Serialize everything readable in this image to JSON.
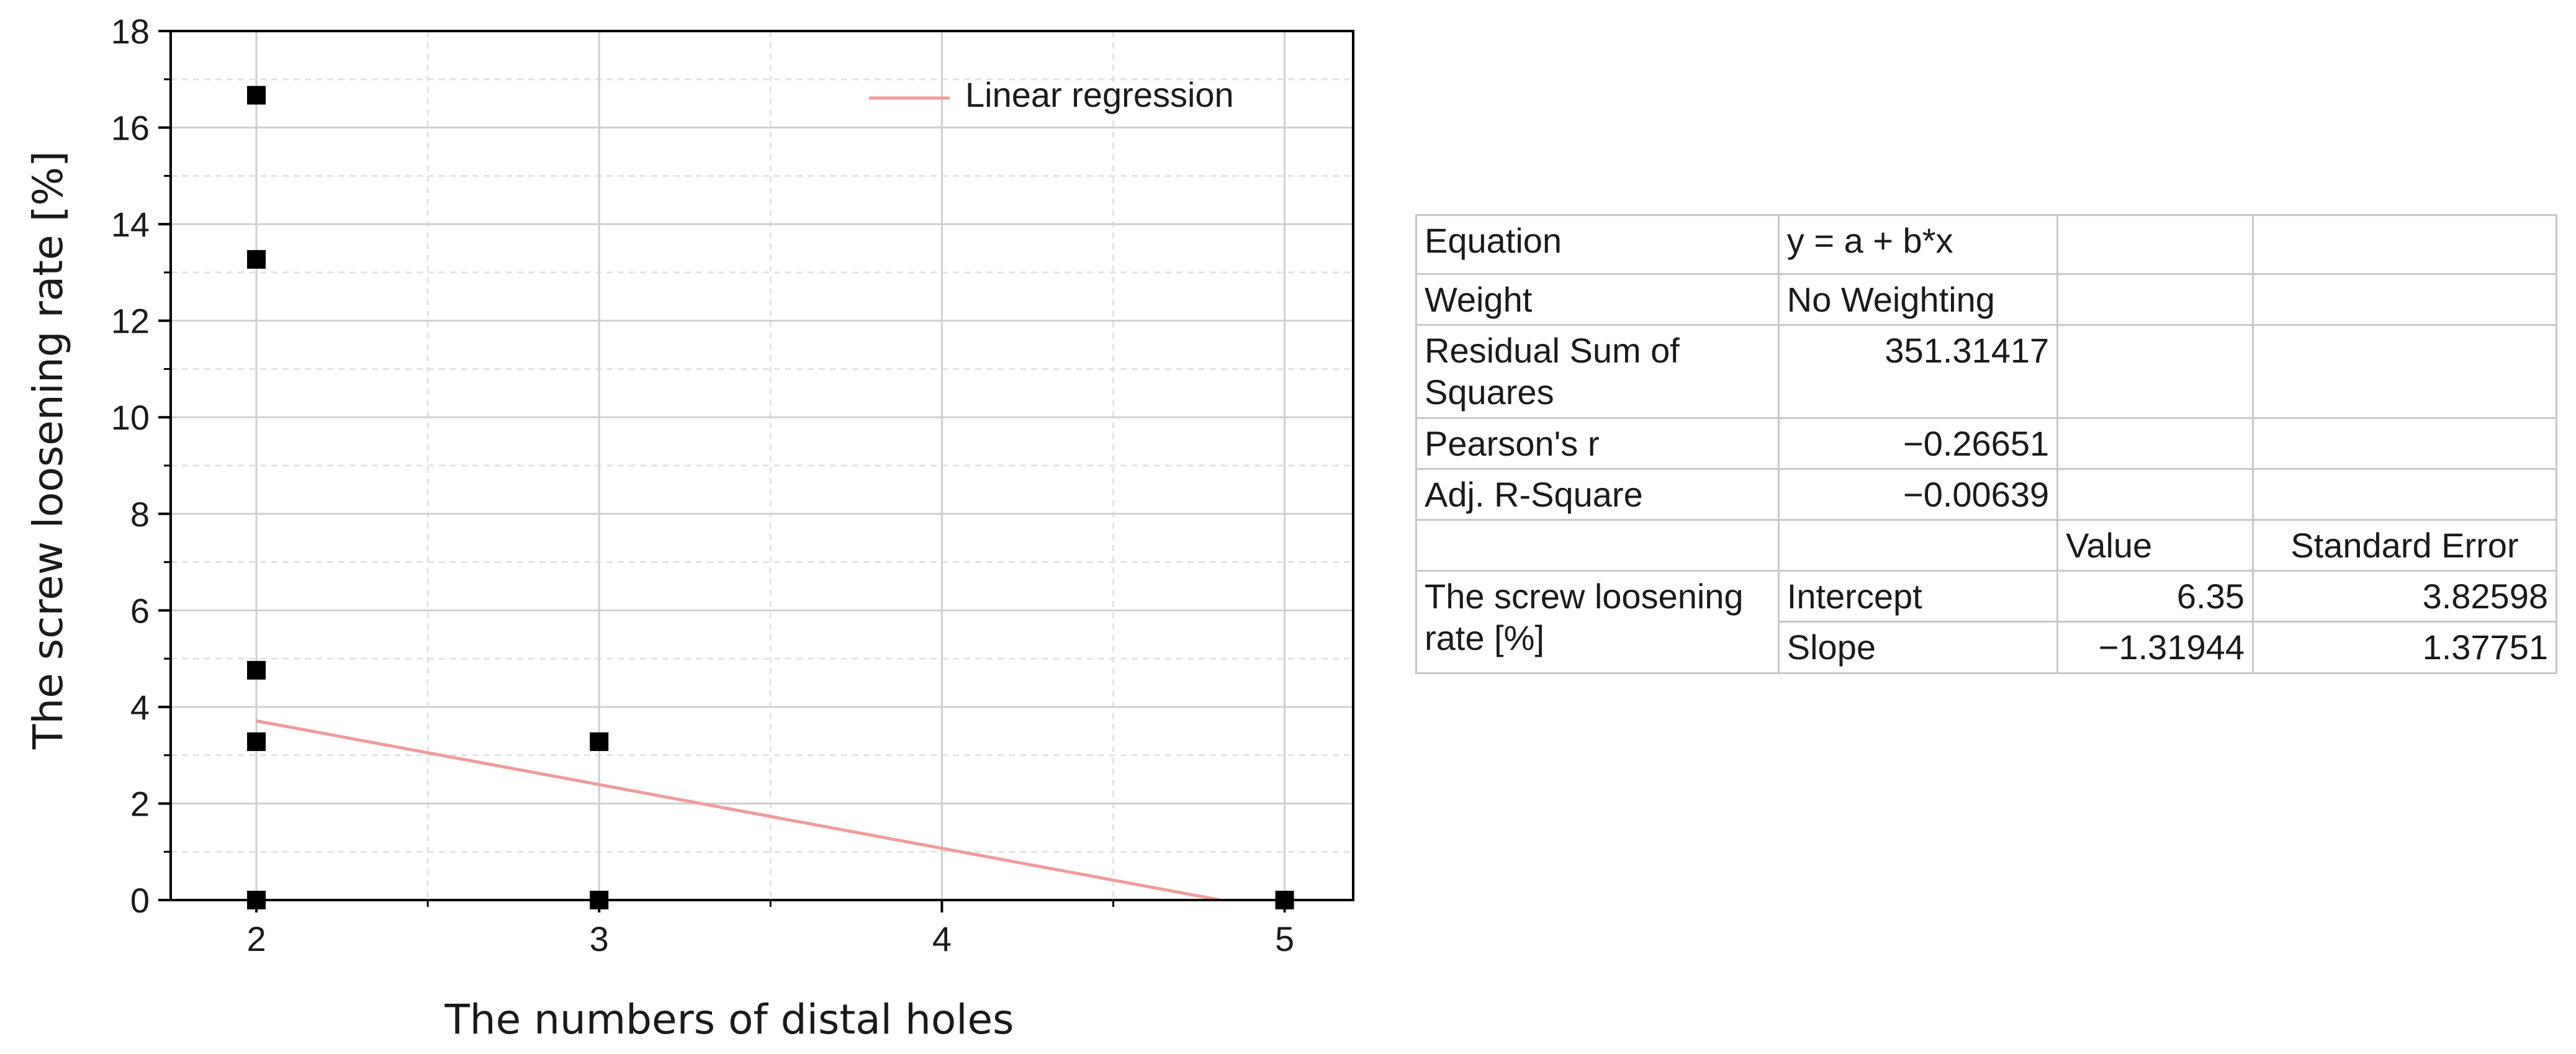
{
  "chart_data": {
    "type": "scatter",
    "title": "",
    "xlabel": "The numbers of distal holes",
    "ylabel": "The screw loosening rate [%]",
    "xlim": [
      1.75,
      5.2
    ],
    "ylim": [
      0,
      18
    ],
    "xticks": [
      2,
      3,
      4,
      5
    ],
    "yticks": [
      0,
      2,
      4,
      6,
      8,
      10,
      12,
      14,
      16,
      18
    ],
    "grid": true,
    "legend": {
      "placement": "top-right",
      "entries": [
        "Linear regression"
      ]
    },
    "points": [
      {
        "x": 2,
        "y": 16.67
      },
      {
        "x": 2,
        "y": 13.27
      },
      {
        "x": 2,
        "y": 4.76
      },
      {
        "x": 2,
        "y": 3.28
      },
      {
        "x": 2,
        "y": 0
      },
      {
        "x": 3,
        "y": 3.28
      },
      {
        "x": 3,
        "y": 0
      },
      {
        "x": 5,
        "y": 0
      }
    ],
    "regression": {
      "name": "Linear regression",
      "intercept": 6.35,
      "slope": -1.31944,
      "x_range": [
        2,
        4.81
      ],
      "color": "#f29a9a"
    },
    "marker_color": "#000000"
  },
  "fit_table": {
    "rows": [
      {
        "label": "Equation",
        "value": "y = a + b*x"
      },
      {
        "label": "Weight",
        "value": "No Weighting"
      },
      {
        "label": "Residual Sum of Squares",
        "value": "351.31417"
      },
      {
        "label": "Pearson's r",
        "value": "−0.26651"
      },
      {
        "label": "Adj. R-Square",
        "value": "−0.00639"
      }
    ],
    "param_header": {
      "value": "Value",
      "error": "Standard Error"
    },
    "group_label": "The screw loosening rate [%]",
    "params": [
      {
        "name": "Intercept",
        "value": "6.35",
        "error": "3.82598"
      },
      {
        "name": "Slope",
        "value": "−1.31944",
        "error": "1.37751"
      }
    ]
  }
}
